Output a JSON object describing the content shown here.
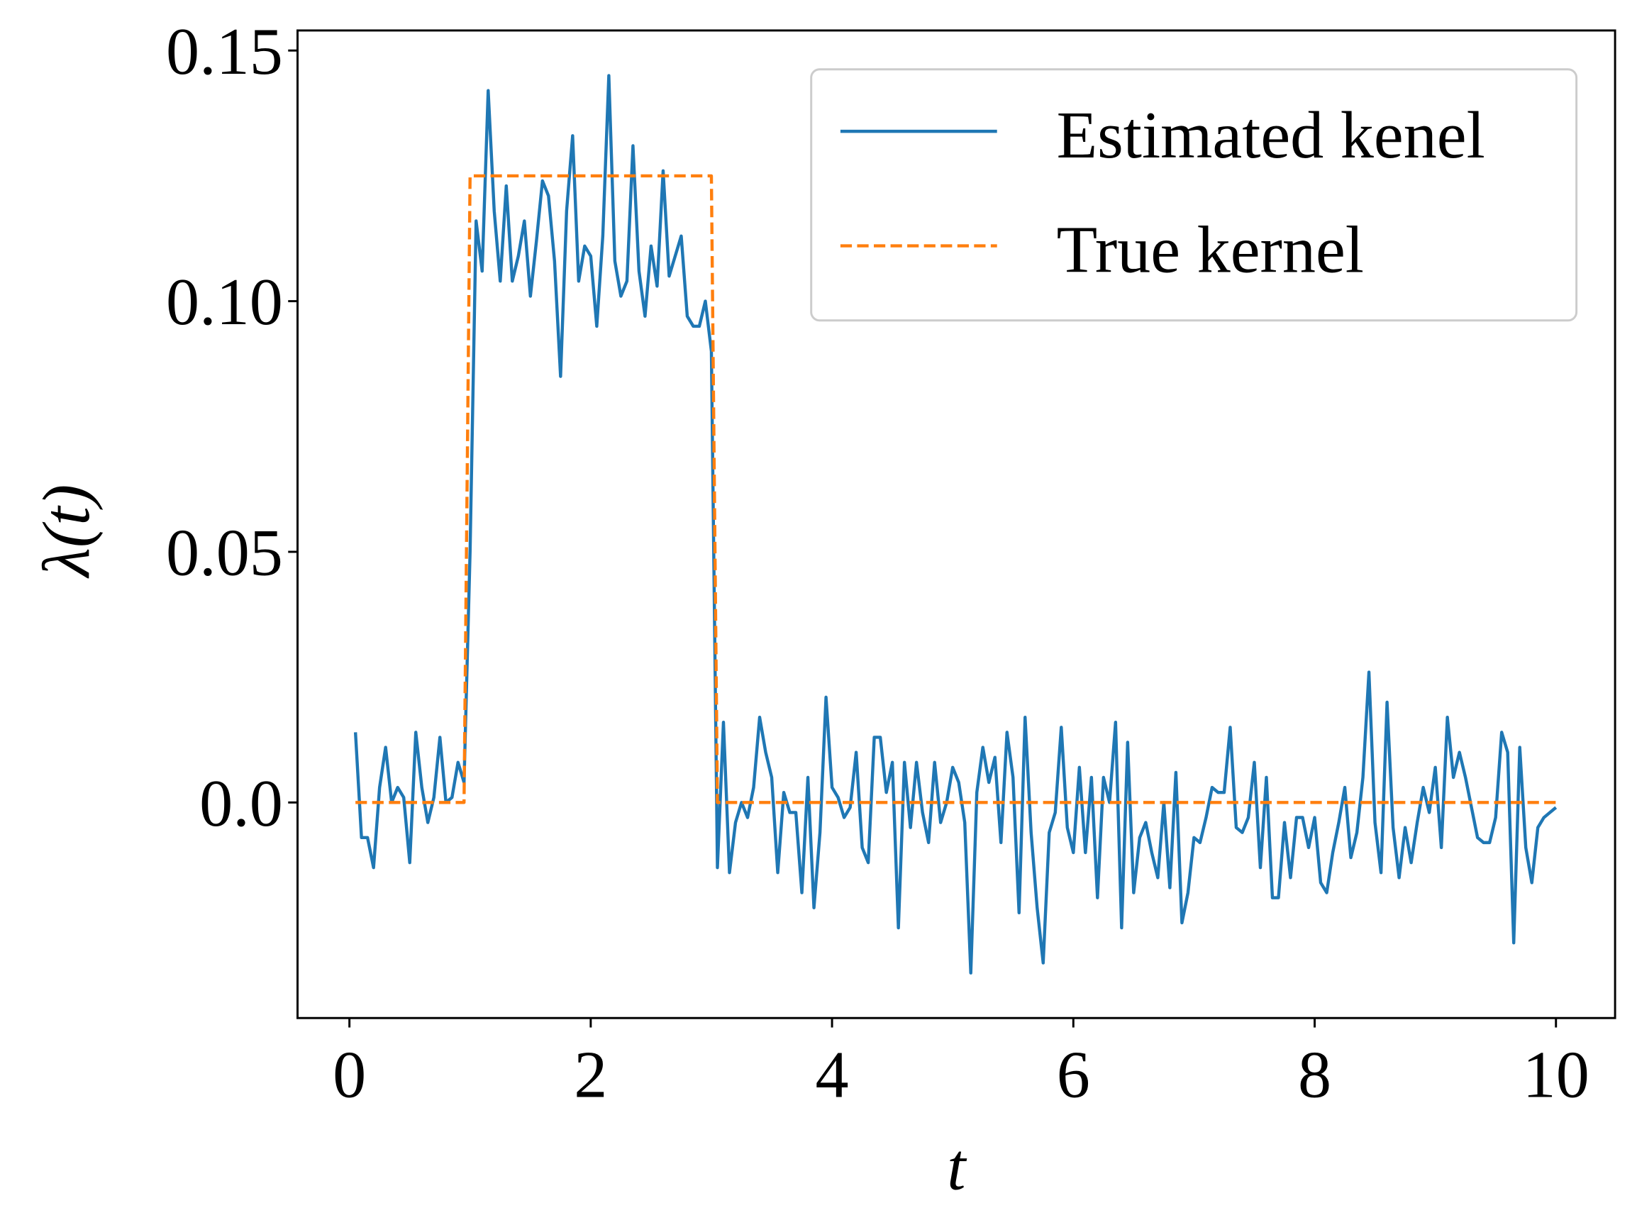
{
  "chart_data": {
    "type": "line",
    "xlabel": "t",
    "ylabel": "λ(t)",
    "xlim": [
      -0.43,
      10.49
    ],
    "ylim": [
      -0.043,
      0.154
    ],
    "xticks": [
      0,
      2,
      4,
      6,
      8,
      10
    ],
    "yticks": [
      {
        "value": 0,
        "label": "0.0"
      },
      0.05,
      {
        "value": 0.1,
        "label": "0.10"
      },
      0.15
    ],
    "legend": "upper right",
    "series": [
      {
        "name": "Estimated kenel",
        "color": "#1f77b4",
        "style": "solid",
        "x": [
          0.05,
          0.1,
          0.15,
          0.2,
          0.25,
          0.3,
          0.35,
          0.4,
          0.45,
          0.5,
          0.55,
          0.6,
          0.65,
          0.7,
          0.75,
          0.8,
          0.85,
          0.9,
          0.95,
          1.0,
          1.05,
          1.1,
          1.15,
          1.2,
          1.25,
          1.3,
          1.35,
          1.4,
          1.45,
          1.5,
          1.55,
          1.6,
          1.65,
          1.7,
          1.75,
          1.8,
          1.85,
          1.9,
          1.95,
          2.0,
          2.05,
          2.1,
          2.15,
          2.2,
          2.25,
          2.3,
          2.35,
          2.4,
          2.45,
          2.5,
          2.55,
          2.6,
          2.65,
          2.7,
          2.75,
          2.8,
          2.85,
          2.9,
          2.95,
          3.0,
          3.05,
          3.1,
          3.15,
          3.2,
          3.25,
          3.3,
          3.35,
          3.4,
          3.45,
          3.5,
          3.55,
          3.6,
          3.65,
          3.7,
          3.75,
          3.8,
          3.85,
          3.9,
          3.95,
          4.0,
          4.05,
          4.1,
          4.15,
          4.2,
          4.25,
          4.3,
          4.35,
          4.4,
          4.45,
          4.5,
          4.55,
          4.6,
          4.65,
          4.7,
          4.75,
          4.8,
          4.85,
          4.9,
          4.95,
          5.0,
          5.05,
          5.1,
          5.15,
          5.2,
          5.25,
          5.3,
          5.35,
          5.4,
          5.45,
          5.5,
          5.55,
          5.6,
          5.65,
          5.7,
          5.75,
          5.8,
          5.85,
          5.9,
          5.95,
          6.0,
          6.05,
          6.1,
          6.15,
          6.2,
          6.25,
          6.3,
          6.35,
          6.4,
          6.45,
          6.5,
          6.55,
          6.6,
          6.65,
          6.7,
          6.75,
          6.8,
          6.85,
          6.9,
          6.95,
          7.0,
          7.05,
          7.1,
          7.15,
          7.2,
          7.25,
          7.3,
          7.35,
          7.4,
          7.45,
          7.5,
          7.55,
          7.6,
          7.65,
          7.7,
          7.75,
          7.8,
          7.85,
          7.9,
          7.95,
          8.0,
          8.05,
          8.1,
          8.15,
          8.2,
          8.25,
          8.3,
          8.35,
          8.4,
          8.45,
          8.5,
          8.55,
          8.6,
          8.65,
          8.7,
          8.75,
          8.8,
          8.85,
          8.9,
          8.95,
          9.0,
          9.05,
          9.1,
          9.15,
          9.2,
          9.25,
          9.3,
          9.35,
          9.4,
          9.45,
          9.5,
          9.55,
          9.6,
          9.65,
          9.7,
          9.75,
          9.8,
          9.85,
          9.9,
          9.95,
          10.0
        ],
        "values": [
          0.014,
          -0.007,
          -0.007,
          -0.013,
          0.003,
          0.011,
          0.0,
          0.003,
          0.001,
          -0.012,
          0.014,
          0.003,
          -0.004,
          0.001,
          0.013,
          0.0,
          0.001,
          0.008,
          0.004,
          0.05,
          0.116,
          0.106,
          0.142,
          0.118,
          0.104,
          0.123,
          0.104,
          0.109,
          0.116,
          0.101,
          0.112,
          0.124,
          0.121,
          0.108,
          0.085,
          0.118,
          0.133,
          0.104,
          0.111,
          0.109,
          0.095,
          0.113,
          0.145,
          0.108,
          0.101,
          0.104,
          0.131,
          0.106,
          0.097,
          0.111,
          0.103,
          0.126,
          0.105,
          0.109,
          0.113,
          0.097,
          0.095,
          0.095,
          0.1,
          0.09,
          -0.013,
          0.016,
          -0.014,
          -0.004,
          0.0,
          -0.003,
          0.003,
          0.017,
          0.01,
          0.005,
          -0.014,
          0.002,
          -0.002,
          -0.002,
          -0.018,
          0.005,
          -0.021,
          -0.006,
          0.021,
          0.003,
          0.001,
          -0.003,
          -0.001,
          0.01,
          -0.009,
          -0.012,
          0.013,
          0.013,
          0.002,
          0.008,
          -0.025,
          0.008,
          -0.005,
          0.008,
          -0.002,
          -0.008,
          0.008,
          -0.004,
          0.0,
          0.007,
          0.004,
          -0.004,
          -0.034,
          0.002,
          0.011,
          0.004,
          0.009,
          -0.008,
          0.014,
          0.005,
          -0.022,
          0.017,
          -0.006,
          -0.021,
          -0.032,
          -0.006,
          -0.002,
          0.015,
          -0.005,
          -0.01,
          0.007,
          -0.01,
          0.005,
          -0.019,
          0.005,
          0.0,
          0.016,
          -0.025,
          0.012,
          -0.018,
          -0.007,
          -0.004,
          -0.01,
          -0.015,
          0.0,
          -0.017,
          0.006,
          -0.024,
          -0.018,
          -0.007,
          -0.008,
          -0.003,
          0.003,
          0.002,
          0.002,
          0.015,
          -0.005,
          -0.006,
          -0.003,
          0.008,
          -0.013,
          0.005,
          -0.019,
          -0.019,
          -0.004,
          -0.015,
          -0.003,
          -0.003,
          -0.009,
          -0.003,
          -0.016,
          -0.018,
          -0.01,
          -0.004,
          0.003,
          -0.011,
          -0.006,
          0.005,
          0.026,
          -0.004,
          -0.014,
          0.02,
          -0.005,
          -0.015,
          -0.005,
          -0.012,
          -0.004,
          0.003,
          -0.002,
          0.007,
          -0.009,
          0.017,
          0.005,
          0.01,
          0.005,
          -0.001,
          -0.007,
          -0.008,
          -0.008,
          -0.003,
          0.014,
          0.01,
          -0.028,
          0.011,
          -0.009,
          -0.016,
          -0.005,
          -0.003,
          -0.002,
          -0.001
        ]
      },
      {
        "name": "True kernel",
        "color": "#ff7f0e",
        "style": "dashed",
        "x": [
          0.05,
          0.95,
          1.0,
          3.0,
          3.05,
          10.0
        ],
        "values": [
          0,
          0,
          0.125,
          0.125,
          0,
          0
        ]
      }
    ]
  }
}
